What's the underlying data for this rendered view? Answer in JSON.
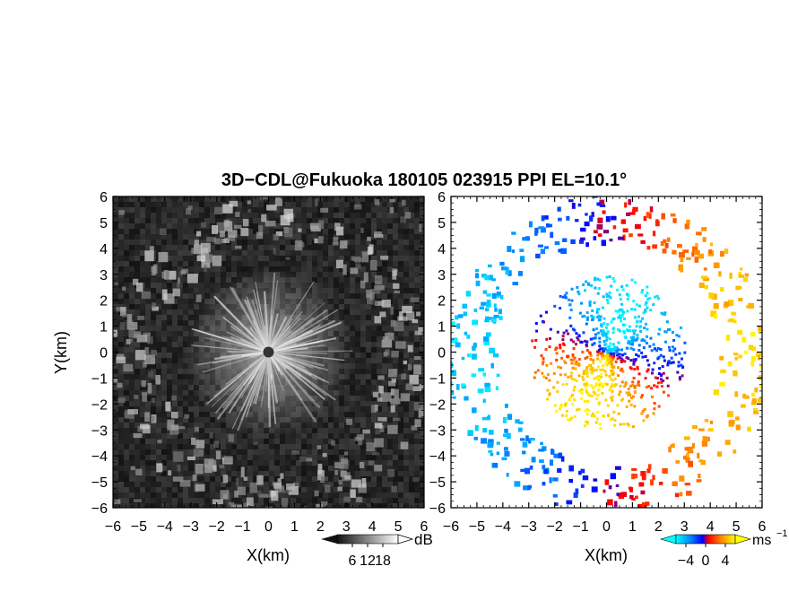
{
  "title": "3D−CDL@Fukuoka 180105 023915 PPI EL=10.1°",
  "chart_data": [
    {
      "type": "heatmap",
      "panel": "reflectivity",
      "xlabel": "X(km)",
      "ylabel": "Y(km)",
      "xlim": [
        -6,
        6
      ],
      "ylim": [
        -6,
        6
      ],
      "x_ticks": [
        "−6",
        "−5",
        "−4",
        "−3",
        "−2",
        "−1",
        "0",
        "1",
        "2",
        "3",
        "4",
        "5",
        "6"
      ],
      "y_ticks": [
        "6",
        "5",
        "4",
        "3",
        "2",
        "1",
        "0",
        "−1",
        "−2",
        "−3",
        "−4",
        "−5",
        "−6"
      ],
      "colorbar": {
        "unit": "dB",
        "ticks": [
          6,
          12,
          18
        ],
        "tick_labels": [
          "6",
          "12",
          "18"
        ],
        "range": [
          0,
          24
        ],
        "colors": [
          "#111111",
          "#ffffff"
        ]
      },
      "features": {
        "background_db": 3,
        "radial_streaks_max_radius_km": 3.3,
        "ring_clutter_radius_km": [
          4.3,
          6.2
        ]
      }
    },
    {
      "type": "heatmap",
      "panel": "doppler_velocity",
      "xlabel": "X(km)",
      "ylabel": "",
      "xlim": [
        -6,
        6
      ],
      "ylim": [
        -6,
        6
      ],
      "x_ticks": [
        "−6",
        "−5",
        "−4",
        "−3",
        "−2",
        "−1",
        "0",
        "1",
        "2",
        "3",
        "4",
        "5",
        "6"
      ],
      "y_ticks": [
        "6",
        "5",
        "4",
        "3",
        "2",
        "1",
        "0",
        "−1",
        "−2",
        "−3",
        "−4",
        "−5",
        "−6"
      ],
      "colorbar": {
        "unit": "ms",
        "unit_exponent": "−1",
        "ticks": [
          -4,
          0,
          4
        ],
        "tick_labels": [
          "−4",
          "0",
          "4"
        ],
        "range": [
          -6,
          6
        ],
        "colors": [
          "#00ffff",
          "#0080ff",
          "#0000ff",
          "#ff0000",
          "#ff8000",
          "#ffff00"
        ]
      },
      "features": {
        "approaching_sector": "south-southwest (negative, blue)",
        "receding_sector": "north-northeast (positive, orange/yellow)",
        "central_echo_radius_km": 3.0,
        "ring_echo_radius_km": [
          4.3,
          6.2
        ]
      }
    }
  ]
}
